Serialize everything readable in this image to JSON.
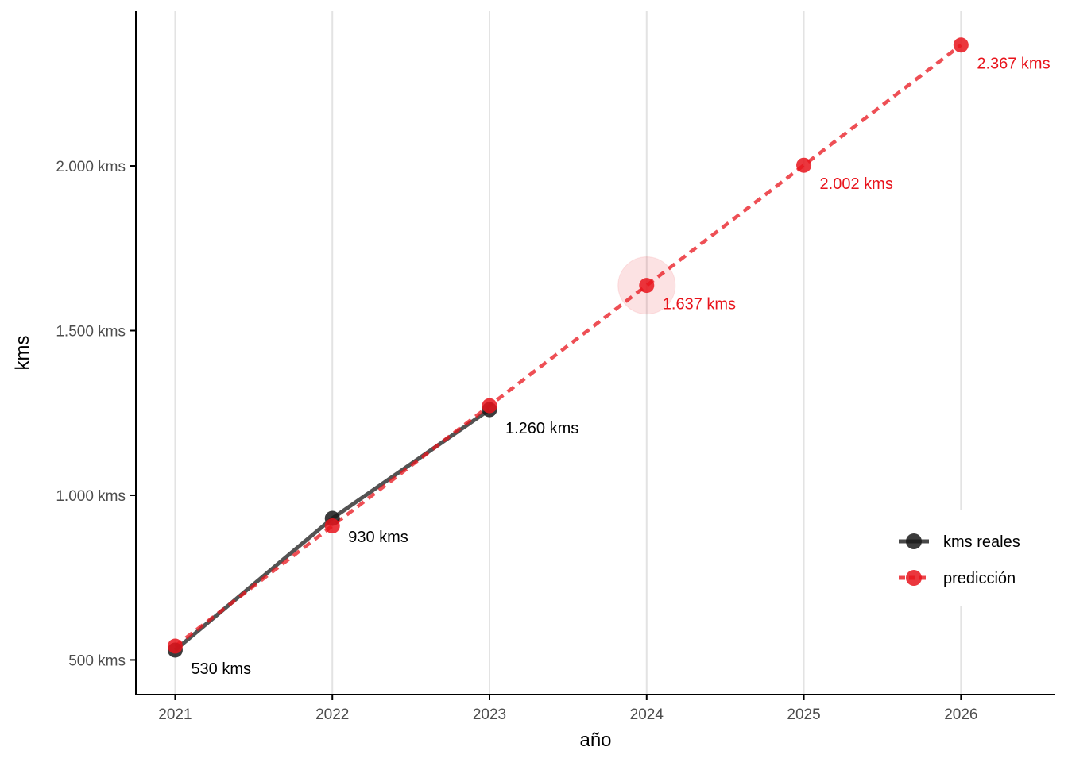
{
  "chart_data": {
    "type": "line",
    "title": "",
    "xlabel": "año",
    "ylabel": "kms",
    "x": [
      2021,
      2022,
      2023,
      2024,
      2025,
      2026
    ],
    "x_tick_labels": [
      "2021",
      "2022",
      "2023",
      "2024",
      "2025",
      "2026"
    ],
    "y_ticks": [
      500,
      1000,
      1500,
      2000
    ],
    "y_tick_labels": [
      "500 kms",
      "1.000 kms",
      "1.500 kms",
      "2.000 kms"
    ],
    "xlim": [
      2020.75,
      2026.6
    ],
    "ylim": [
      395,
      2470
    ],
    "grid": "vertical major gridlines",
    "legend_position": "bottom-right",
    "highlight_x": 2024,
    "series": [
      {
        "name": "kms reales",
        "color": "#1a1a1a",
        "line_style": "solid",
        "x": [
          2021,
          2022,
          2023
        ],
        "values": [
          530,
          930,
          1260
        ],
        "labels": [
          "530 kms",
          "930 kms",
          "1.260 kms"
        ]
      },
      {
        "name": "predicción",
        "color": "#e8141c",
        "line_style": "dashed",
        "x": [
          2021,
          2022,
          2023,
          2024,
          2025,
          2026
        ],
        "values": [
          542,
          907,
          1272,
          1637,
          2002,
          2367
        ],
        "labels": [
          "",
          "",
          "",
          "1.637 kms",
          "2.002 kms",
          "2.367 kms"
        ]
      }
    ]
  }
}
